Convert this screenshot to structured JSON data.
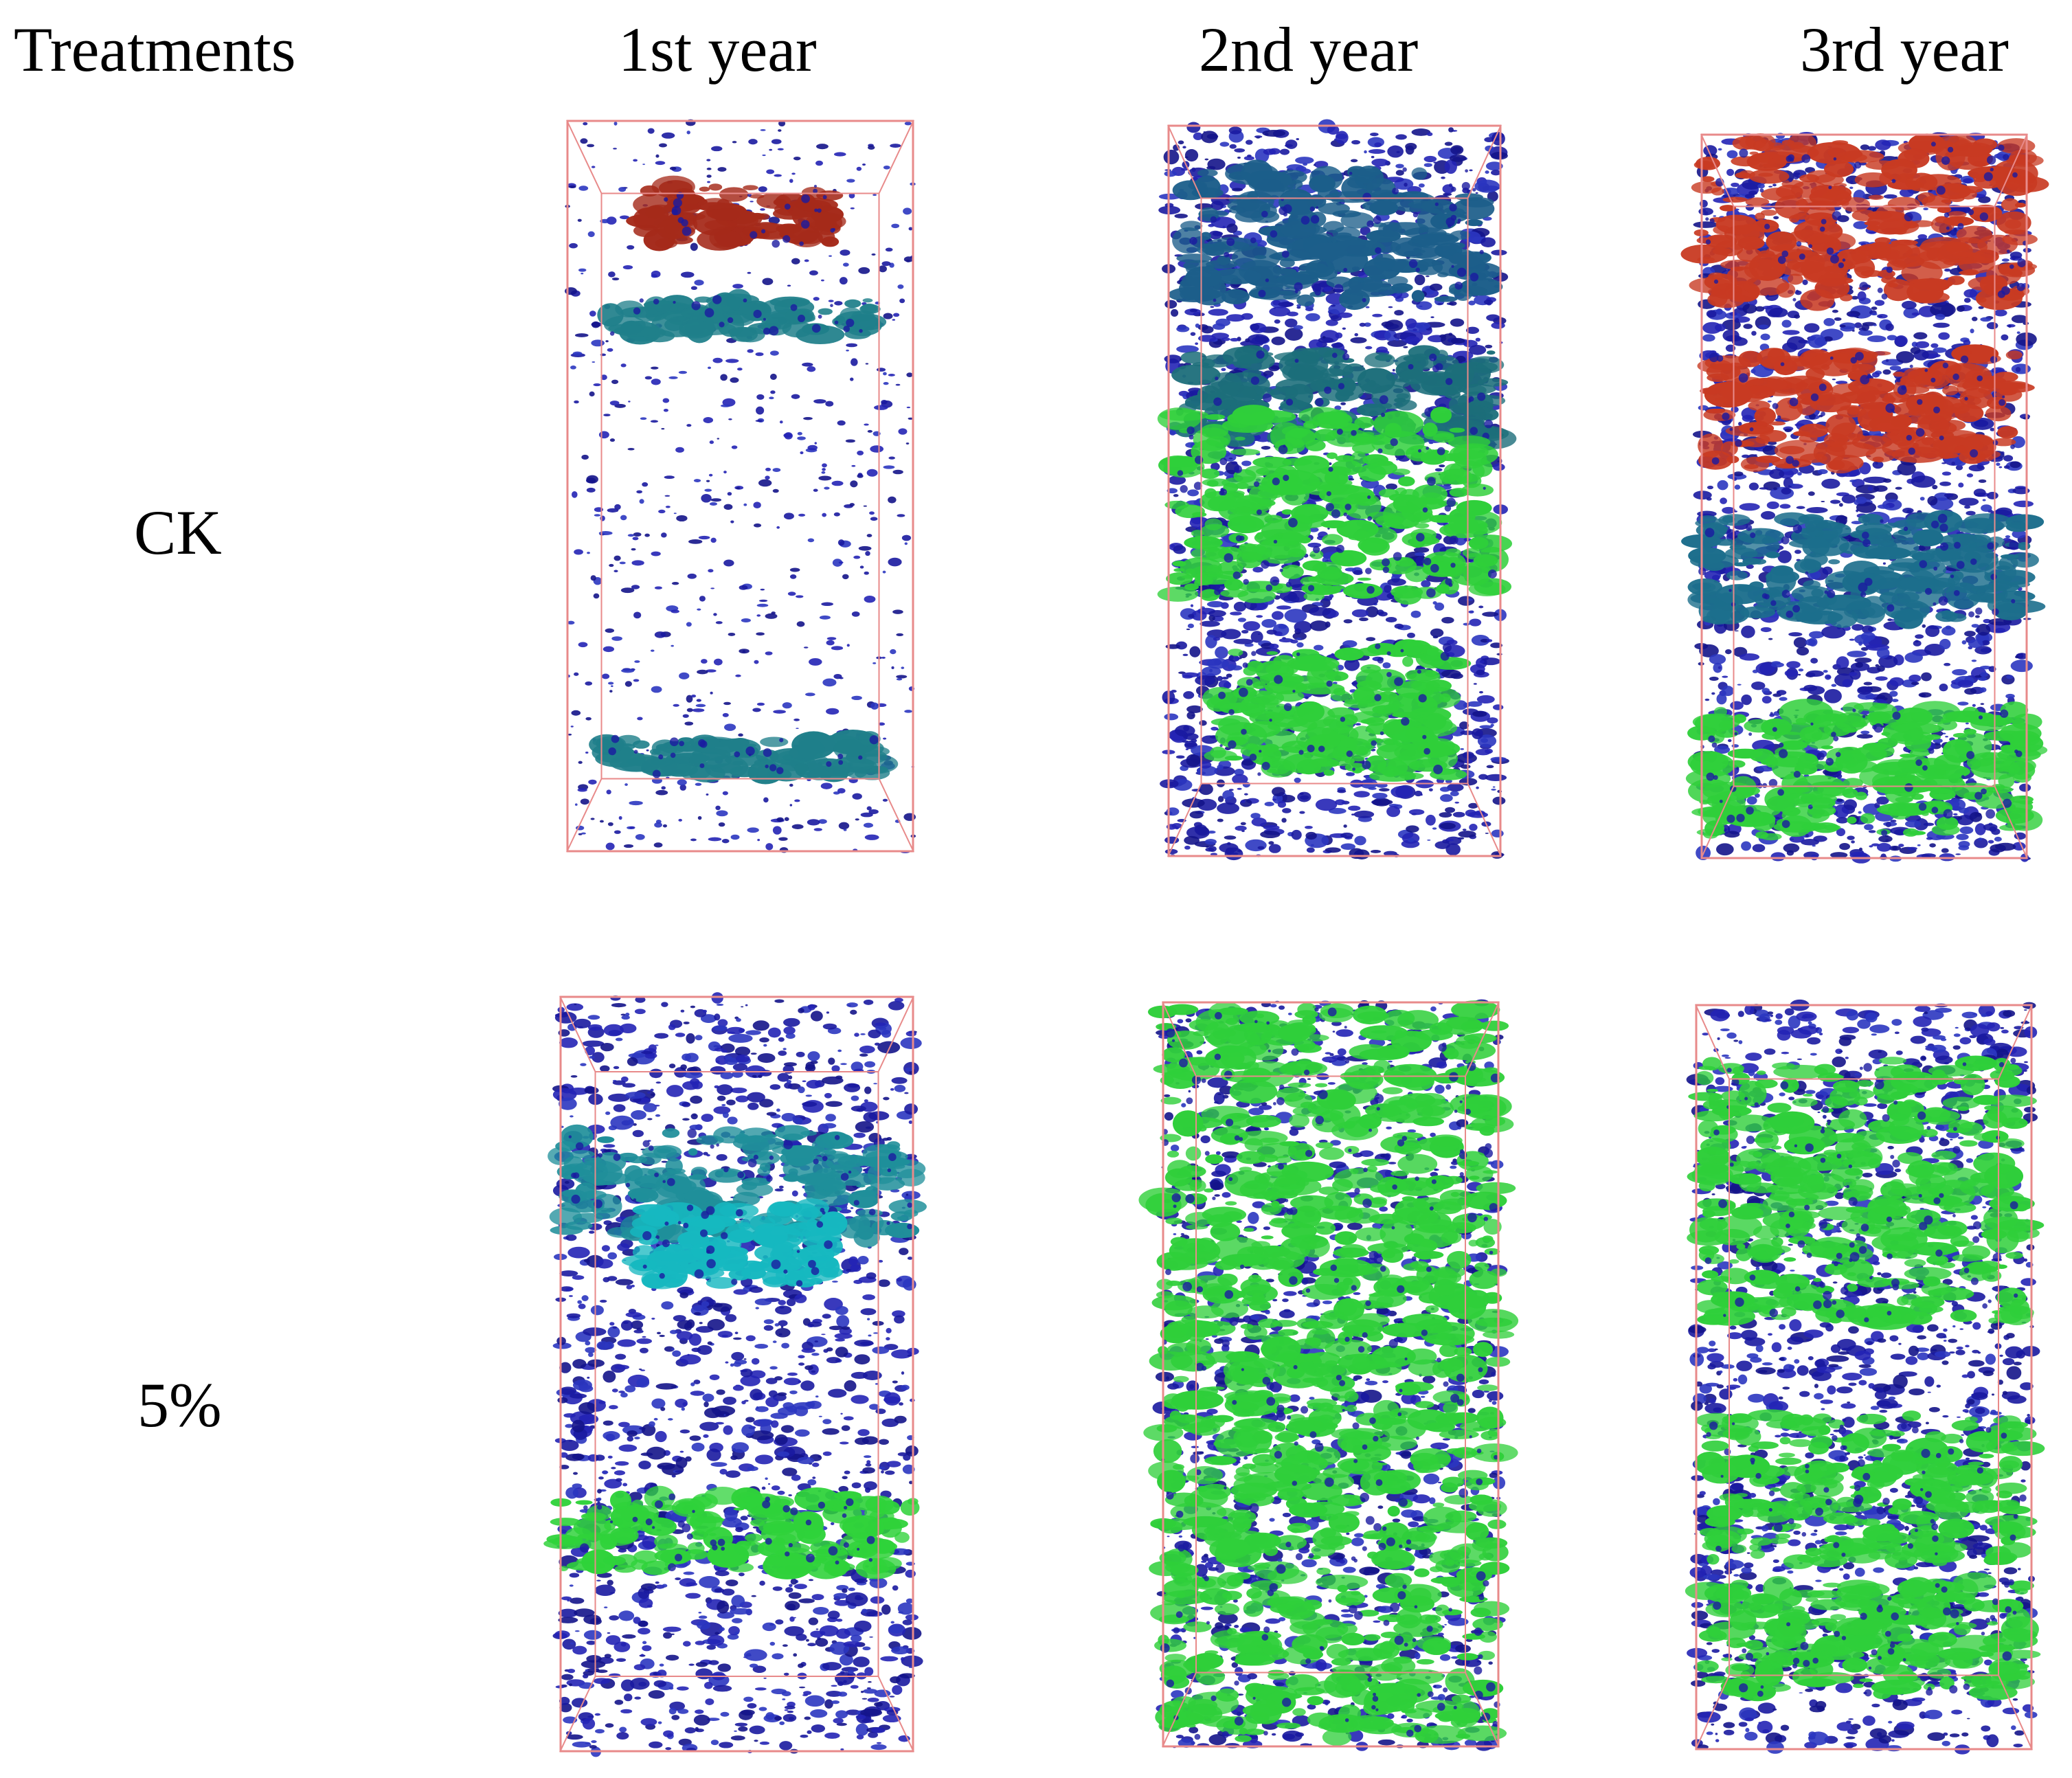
{
  "header": {
    "treatments": "Treatments",
    "years": [
      "1st year",
      "2nd year",
      "3rd year"
    ]
  },
  "rows": [
    {
      "label": "CK",
      "panels": [
        {
          "year": "1st year",
          "bands": [
            [
              "#a52a1a",
              0.13,
              0.08,
              0.55
            ],
            [
              "#1f7f8a",
              0.27,
              0.05,
              0.75
            ],
            [
              "#1f7f8a",
              0.87,
              0.05,
              0.8
            ]
          ],
          "blue_density": 0.12
        },
        {
          "year": "2nd year",
          "bands": [
            [
              "#1c5e8a",
              0.15,
              0.18,
              0.9
            ],
            [
              "#1c6e7a",
              0.37,
              0.12,
              0.95
            ],
            [
              "#2fcf3a",
              0.52,
              0.25,
              0.95
            ],
            [
              "#2fcf3a",
              0.8,
              0.18,
              0.7
            ]
          ],
          "blue_density": 0.55
        },
        {
          "year": "3rd year",
          "bands": [
            [
              "#c83a22",
              0.12,
              0.22,
              1.0
            ],
            [
              "#c83a22",
              0.38,
              0.16,
              0.95
            ],
            [
              "#1c6e8c",
              0.6,
              0.14,
              1.0
            ],
            [
              "#2fcf3a",
              0.88,
              0.18,
              1.0
            ]
          ],
          "blue_density": 0.55
        }
      ]
    },
    {
      "label": "5%",
      "panels": [
        {
          "year": "1st year",
          "bands": [
            [
              "#1f8f9a",
              0.25,
              0.14,
              1.0
            ],
            [
              "#16b8c0",
              0.33,
              0.1,
              0.55
            ],
            [
              "#2fd23a",
              0.71,
              0.1,
              1.0
            ]
          ],
          "blue_density": 0.5
        },
        {
          "year": "2nd year",
          "bands": [
            [
              "#2fcf3a",
              0.5,
              0.98,
              1.0
            ]
          ],
          "blue_density": 0.45
        },
        {
          "year": "3rd year",
          "bands": [
            [
              "#2fcf3a",
              0.25,
              0.35,
              0.95
            ],
            [
              "#2fcf3a",
              0.65,
              0.2,
              0.95
            ],
            [
              "#2fcf3a",
              0.85,
              0.15,
              0.95
            ]
          ],
          "blue_density": 0.5
        }
      ]
    }
  ],
  "colors": {
    "box_edge": "#e88a8a",
    "pore_blue": "#1a1aa0"
  }
}
